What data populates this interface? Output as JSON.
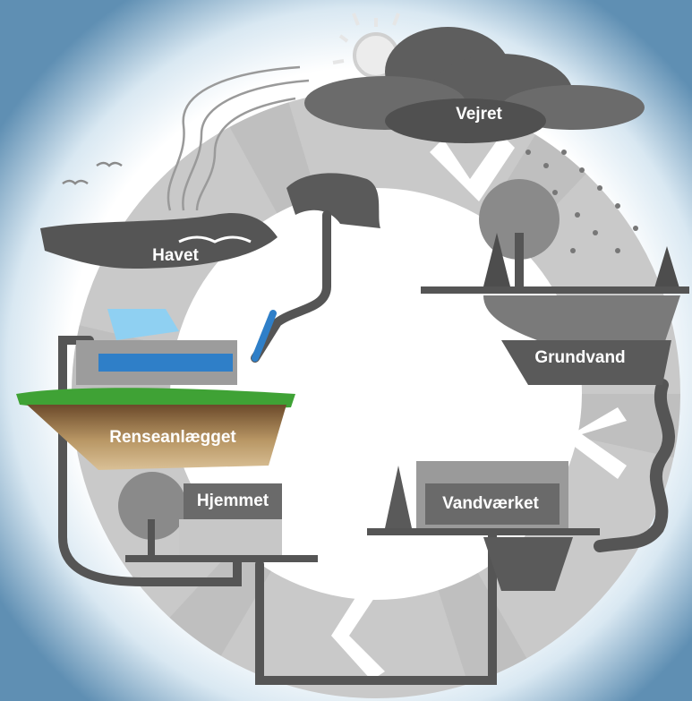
{
  "nodes": [
    {
      "label": "Vejret"
    },
    {
      "label": "Grundvand"
    },
    {
      "label": "Vandværket"
    },
    {
      "label": "Hjemmet"
    },
    {
      "label": "Renseanlægget"
    },
    {
      "label": "Havet"
    }
  ]
}
